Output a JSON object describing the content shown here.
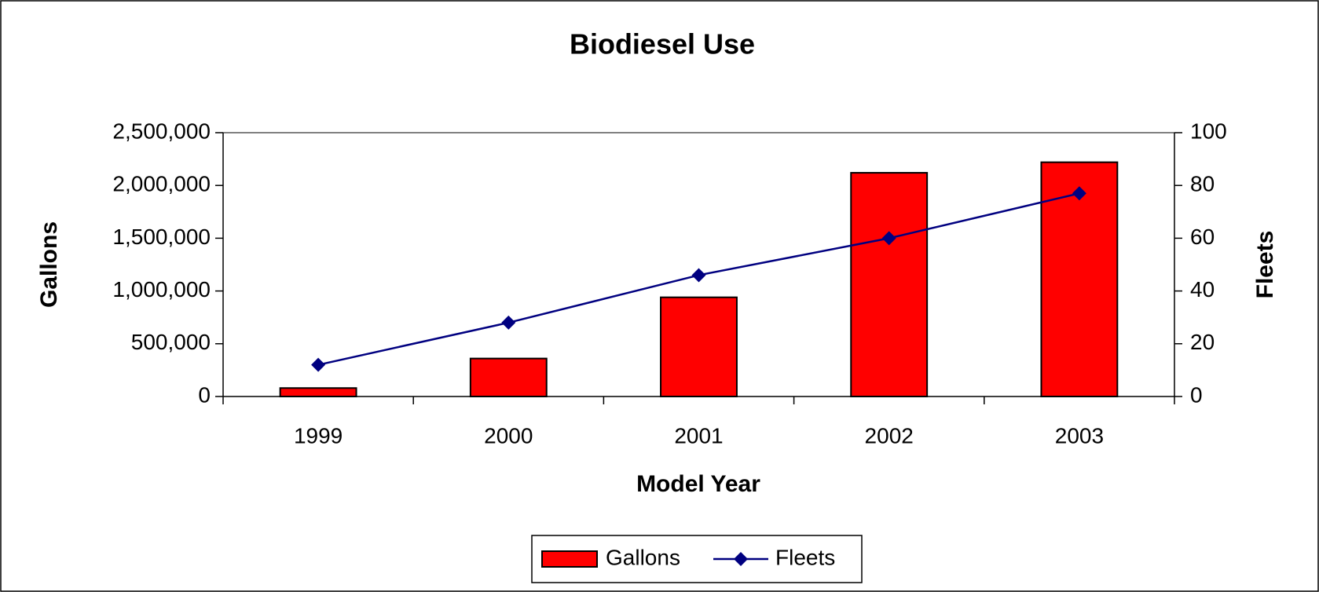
{
  "chart_data": {
    "type": "bar",
    "title": "Biodiesel Use",
    "x_label": "Model Year",
    "y_label": "Gallons",
    "y2_label": "Fleets",
    "categories": [
      "1999",
      "2000",
      "2001",
      "2002",
      "2003"
    ],
    "series": [
      {
        "name": "Gallons",
        "type": "bar",
        "color": "#ff0000",
        "values": [
          80000,
          360000,
          940000,
          2120000,
          2220000
        ]
      },
      {
        "name": "Fleets",
        "type": "line",
        "axis": "y2",
        "color": "#000080",
        "values": [
          12,
          28,
          46,
          60,
          77
        ]
      }
    ],
    "ylim": [
      0,
      2500000
    ],
    "yticks": [
      0,
      {
        "value": 500000,
        "label": "500,000"
      },
      {
        "value": 1000000,
        "label": "1,000,000"
      },
      {
        "value": 1500000,
        "label": "1,500,000"
      },
      {
        "value": 2000000,
        "label": "2,000,000"
      },
      {
        "value": 2500000,
        "label": "2,500,000"
      }
    ],
    "y2lim": [
      0,
      100
    ],
    "y2ticks": [
      0,
      20,
      40,
      60,
      80,
      100
    ],
    "legend": "bottom"
  }
}
